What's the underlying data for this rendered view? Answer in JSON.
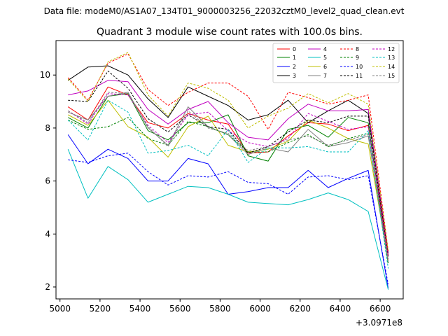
{
  "header": {
    "file_title": "Data file: modeM0/AS1A07_134T01_9000003256_22032cztM0_level2_quad_clean.evt"
  },
  "chart_data": {
    "type": "line",
    "title": "Quadrant 3 module wise count rates with 100.0s bins.",
    "xlabel": "",
    "ylabel": "",
    "x_offset_label": "+3.0971e8",
    "xlim": [
      4980,
      6715
    ],
    "ylim": [
      1.55,
      11.3
    ],
    "xticks": [
      5000,
      5200,
      5400,
      5600,
      5800,
      6000,
      6200,
      6400,
      6600
    ],
    "xtick_labels": [
      "5000",
      "5200",
      "5400",
      "5600",
      "5800",
      "6000",
      "6200",
      "6400",
      "6600"
    ],
    "yticks": [
      2,
      4,
      6,
      8,
      10
    ],
    "ytick_labels": [
      "2",
      "4",
      "6",
      "8",
      "10"
    ],
    "x": [
      5040,
      5140,
      5240,
      5340,
      5440,
      5540,
      5640,
      5740,
      5840,
      5940,
      6040,
      6140,
      6240,
      6340,
      6440,
      6540,
      6640
    ],
    "series": [
      {
        "name": "0",
        "color": "#ff0000",
        "dashed": false,
        "values": [
          8.8,
          8.3,
          9.55,
          9.25,
          8.2,
          8.0,
          8.55,
          8.3,
          8.15,
          7.05,
          7.1,
          7.7,
          8.2,
          8.15,
          7.9,
          8.1,
          3.2
        ]
      },
      {
        "name": "1",
        "color": "#008000",
        "dashed": false,
        "values": [
          8.4,
          8.0,
          9.2,
          9.3,
          7.9,
          7.55,
          8.2,
          8.2,
          8.5,
          6.95,
          6.75,
          7.95,
          8.1,
          7.65,
          8.4,
          8.2,
          2.9
        ]
      },
      {
        "name": "2",
        "color": "#0000ff",
        "dashed": false,
        "values": [
          7.75,
          6.65,
          7.2,
          6.85,
          6.0,
          6.0,
          6.85,
          6.65,
          5.5,
          5.6,
          5.75,
          5.75,
          6.4,
          5.75,
          6.1,
          6.4,
          1.95
        ]
      },
      {
        "name": "3",
        "color": "#000000",
        "dashed": false,
        "values": [
          9.8,
          10.3,
          10.35,
          10.0,
          9.1,
          8.4,
          9.55,
          9.2,
          8.85,
          8.3,
          8.5,
          9.05,
          8.2,
          8.65,
          9.05,
          8.55,
          3.3
        ]
      },
      {
        "name": "4",
        "color": "#c000c0",
        "dashed": false,
        "values": [
          9.25,
          9.4,
          9.8,
          9.75,
          8.7,
          8.15,
          8.7,
          9.0,
          8.2,
          7.65,
          7.55,
          8.35,
          8.9,
          8.65,
          8.65,
          8.7,
          3.25
        ]
      },
      {
        "name": "5",
        "color": "#00c0c0",
        "dashed": false,
        "values": [
          7.2,
          5.35,
          6.55,
          6.05,
          5.2,
          5.5,
          5.8,
          5.75,
          5.5,
          5.2,
          5.15,
          5.1,
          5.3,
          5.55,
          5.3,
          4.85,
          1.9
        ]
      },
      {
        "name": "6",
        "color": "#bfbf00",
        "dashed": false,
        "values": [
          8.5,
          8.1,
          9.05,
          8.05,
          7.65,
          6.9,
          8.05,
          8.45,
          7.35,
          7.1,
          7.2,
          7.5,
          8.3,
          8.0,
          7.6,
          7.4,
          3.0
        ]
      },
      {
        "name": "7",
        "color": "#808080",
        "dashed": false,
        "values": [
          8.6,
          8.3,
          9.2,
          9.35,
          8.0,
          7.35,
          8.8,
          8.05,
          7.75,
          7.0,
          7.25,
          7.1,
          7.95,
          7.3,
          7.45,
          7.7,
          2.95
        ]
      },
      {
        "name": "8",
        "color": "#ff0000",
        "dashed": true,
        "values": [
          9.9,
          9.05,
          10.45,
          10.8,
          9.45,
          8.85,
          9.35,
          9.7,
          9.7,
          9.2,
          7.95,
          9.35,
          9.15,
          8.9,
          9.05,
          9.25,
          3.35
        ]
      },
      {
        "name": "9",
        "color": "#008000",
        "dashed": true,
        "values": [
          8.3,
          7.95,
          8.05,
          8.4,
          7.6,
          7.35,
          8.25,
          8.05,
          7.75,
          7.1,
          7.1,
          7.45,
          7.75,
          7.3,
          7.6,
          7.8,
          2.85
        ]
      },
      {
        "name": "10",
        "color": "#0000ff",
        "dashed": true,
        "values": [
          6.8,
          6.7,
          6.95,
          7.05,
          6.35,
          5.85,
          6.2,
          6.15,
          6.35,
          5.95,
          5.9,
          5.5,
          6.15,
          6.2,
          6.05,
          6.2,
          2.1
        ]
      },
      {
        "name": "11",
        "color": "#000000",
        "dashed": true,
        "values": [
          9.05,
          9.0,
          10.15,
          9.5,
          8.35,
          7.85,
          8.5,
          8.05,
          7.95,
          7.05,
          7.3,
          7.85,
          8.3,
          8.2,
          8.45,
          8.45,
          3.15
        ]
      },
      {
        "name": "12",
        "color": "#c000c0",
        "dashed": true,
        "values": [
          8.65,
          8.15,
          9.3,
          9.25,
          8.1,
          7.45,
          8.5,
          8.6,
          7.9,
          7.45,
          7.3,
          7.6,
          8.55,
          8.25,
          7.95,
          8.05,
          3.05
        ]
      },
      {
        "name": "13",
        "color": "#00c0c0",
        "dashed": true,
        "values": [
          8.3,
          7.55,
          9.05,
          8.6,
          7.05,
          7.15,
          7.35,
          6.95,
          7.95,
          6.7,
          7.25,
          7.25,
          7.3,
          7.1,
          7.1,
          7.9,
          2.7
        ]
      },
      {
        "name": "14",
        "color": "#bfbf00",
        "dashed": true,
        "values": [
          9.85,
          9.0,
          10.5,
          10.85,
          9.25,
          8.45,
          9.7,
          9.5,
          9.05,
          8.0,
          8.45,
          8.75,
          9.3,
          8.95,
          9.3,
          8.9,
          3.35
        ]
      },
      {
        "name": "15",
        "color": "#808080",
        "dashed": true,
        "values": [
          8.65,
          8.2,
          9.35,
          9.3,
          8.05,
          7.3,
          8.65,
          8.0,
          7.8,
          7.15,
          7.3,
          7.55,
          7.7,
          7.35,
          7.55,
          7.75,
          2.95
        ]
      }
    ]
  }
}
